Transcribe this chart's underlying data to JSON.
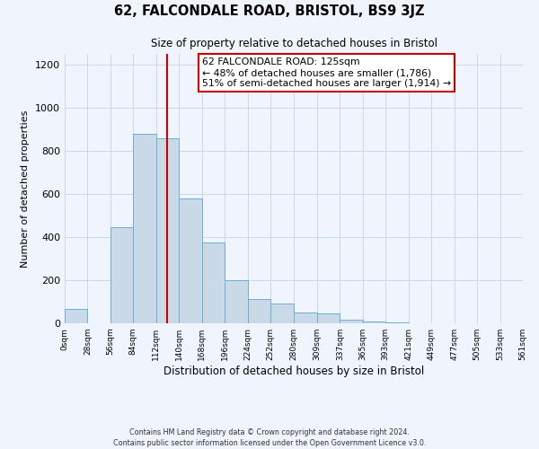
{
  "title_line1": "62, FALCONDALE ROAD, BRISTOL, BS9 3JZ",
  "title_line2": "Size of property relative to detached houses in Bristol",
  "xlabel": "Distribution of detached houses by size in Bristol",
  "ylabel": "Number of detached properties",
  "bin_edges": [
    0,
    28,
    56,
    84,
    112,
    140,
    168,
    196,
    224,
    252,
    280,
    309,
    337,
    365,
    393,
    421,
    449,
    477,
    505,
    533,
    561
  ],
  "bin_heights": [
    65,
    0,
    445,
    880,
    860,
    578,
    375,
    200,
    112,
    90,
    50,
    45,
    15,
    10,
    5,
    2,
    0,
    0,
    0,
    0
  ],
  "bar_facecolor": "#c9d9e8",
  "bar_edgecolor": "#6aafd6",
  "vline_x": 125,
  "vline_color": "#cc0000",
  "annotation_line1": "62 FALCONDALE ROAD: 125sqm",
  "annotation_line2": "← 48% of detached houses are smaller (1,786)",
  "annotation_line3": "51% of semi-detached houses are larger (1,914) →",
  "annotation_box_facecolor": "white",
  "annotation_box_edgecolor": "#cc0000",
  "ylim": [
    0,
    1250
  ],
  "yticks": [
    0,
    200,
    400,
    600,
    800,
    1000,
    1200
  ],
  "xtick_labels": [
    "0sqm",
    "28sqm",
    "56sqm",
    "84sqm",
    "112sqm",
    "140sqm",
    "168sqm",
    "196sqm",
    "224sqm",
    "252sqm",
    "280sqm",
    "309sqm",
    "337sqm",
    "365sqm",
    "393sqm",
    "421sqm",
    "449sqm",
    "477sqm",
    "505sqm",
    "533sqm",
    "561sqm"
  ],
  "footnote1": "Contains HM Land Registry data © Crown copyright and database right 2024.",
  "footnote2": "Contains public sector information licensed under the Open Government Licence v3.0.",
  "background_color": "#f0f5fd",
  "grid_color": "#c8d8ea"
}
